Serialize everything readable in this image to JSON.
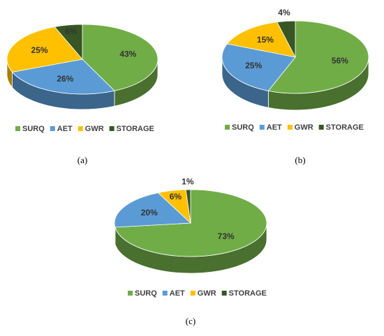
{
  "chart_data": [
    {
      "type": "pie",
      "caption": "(a)",
      "categories": [
        "SURQ",
        "AET",
        "GWR",
        "STORAGE"
      ],
      "values": [
        43,
        26,
        25,
        6
      ],
      "value_labels": [
        "43%",
        "26%",
        "25%",
        "6%"
      ],
      "colors": [
        "#70ad47",
        "#5b9bd5",
        "#ffc000",
        "#375623"
      ],
      "legend": "bottom"
    },
    {
      "type": "pie",
      "caption": "(b)",
      "categories": [
        "SURQ",
        "AET",
        "GWR",
        "STORAGE"
      ],
      "values": [
        56,
        25,
        15,
        4
      ],
      "value_labels": [
        "56%",
        "25%",
        "15%",
        "4%"
      ],
      "colors": [
        "#70ad47",
        "#5b9bd5",
        "#ffc000",
        "#375623"
      ],
      "legend": "bottom"
    },
    {
      "type": "pie",
      "caption": "(c)",
      "categories": [
        "SURQ",
        "AET",
        "GWR",
        "STORAGE"
      ],
      "values": [
        73,
        20,
        6,
        1
      ],
      "value_labels": [
        "73%",
        "20%",
        "6%",
        "1%"
      ],
      "colors": [
        "#70ad47",
        "#5b9bd5",
        "#ffc000",
        "#375623"
      ],
      "legend": "bottom"
    }
  ]
}
